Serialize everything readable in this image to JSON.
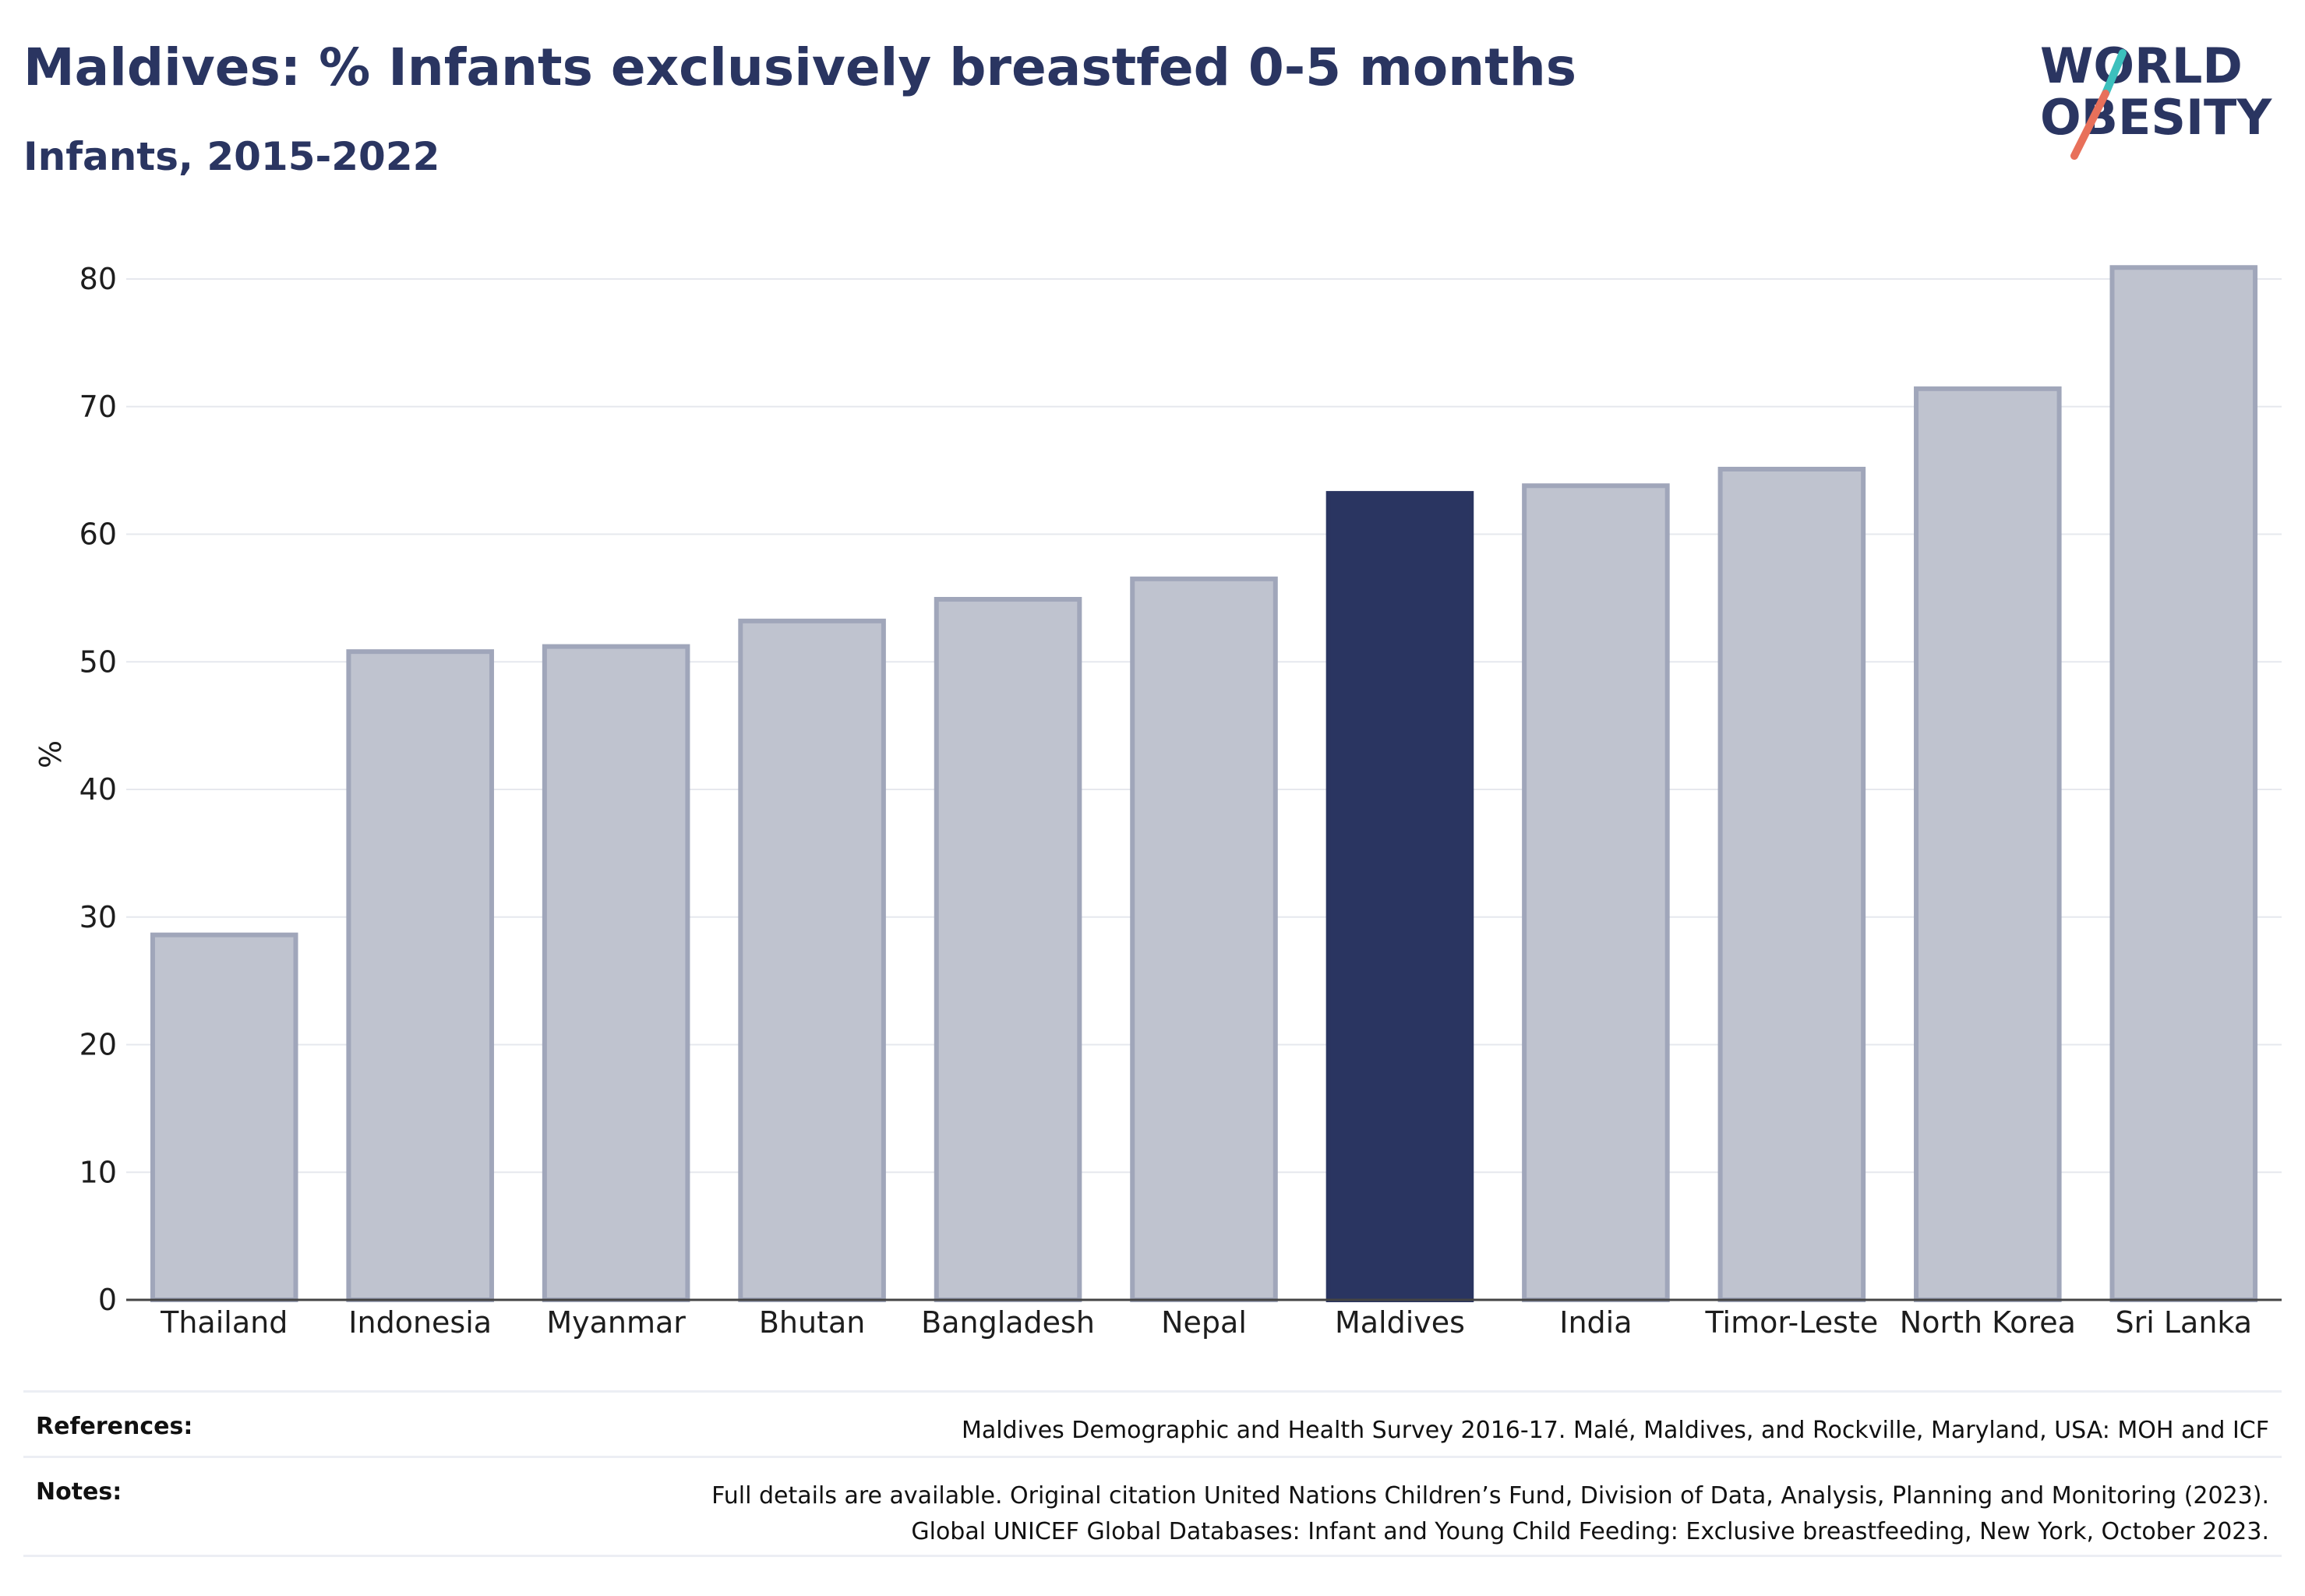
{
  "title": "Maldives: % Infants exclusively breastfed 0-5 months",
  "subtitle": "Infants, 2015-2022",
  "logo": {
    "line1": "WORLD",
    "line2": "OBESITY"
  },
  "colors": {
    "highlight": "#2a3561",
    "bar": "#bfc3cf",
    "bar_border": "#a0a6ba",
    "accent_teal": "#3cc0bd",
    "accent_coral": "#e8705a"
  },
  "chart_data": {
    "type": "bar",
    "categories": [
      "Thailand",
      "Indonesia",
      "Myanmar",
      "Bhutan",
      "Bangladesh",
      "Nepal",
      "Maldives",
      "India",
      "Timor-Leste",
      "North Korea",
      "Sri Lanka"
    ],
    "values": [
      28.6,
      50.8,
      51.2,
      53.2,
      54.9,
      56.5,
      63.2,
      63.8,
      65.1,
      71.4,
      80.9
    ],
    "highlight": "Maldives",
    "ylabel": "%",
    "ylim": [
      0,
      80
    ],
    "yticks": [
      0,
      10,
      20,
      30,
      40,
      50,
      60,
      70,
      80
    ],
    "grid": true
  },
  "references": {
    "label": "References:",
    "text": "Maldives Demographic and Health Survey 2016-17. Malé, Maldives, and Rockville, Maryland, USA: MOH and ICF"
  },
  "notes": {
    "label": "Notes:",
    "line1": "Full details are available. Original citation United Nations Children’s Fund, Division of Data, Analysis, Planning and Monitoring (2023).",
    "line2": "Global UNICEF Global Databases: Infant and Young Child Feeding: Exclusive breastfeeding, New York, October 2023."
  }
}
